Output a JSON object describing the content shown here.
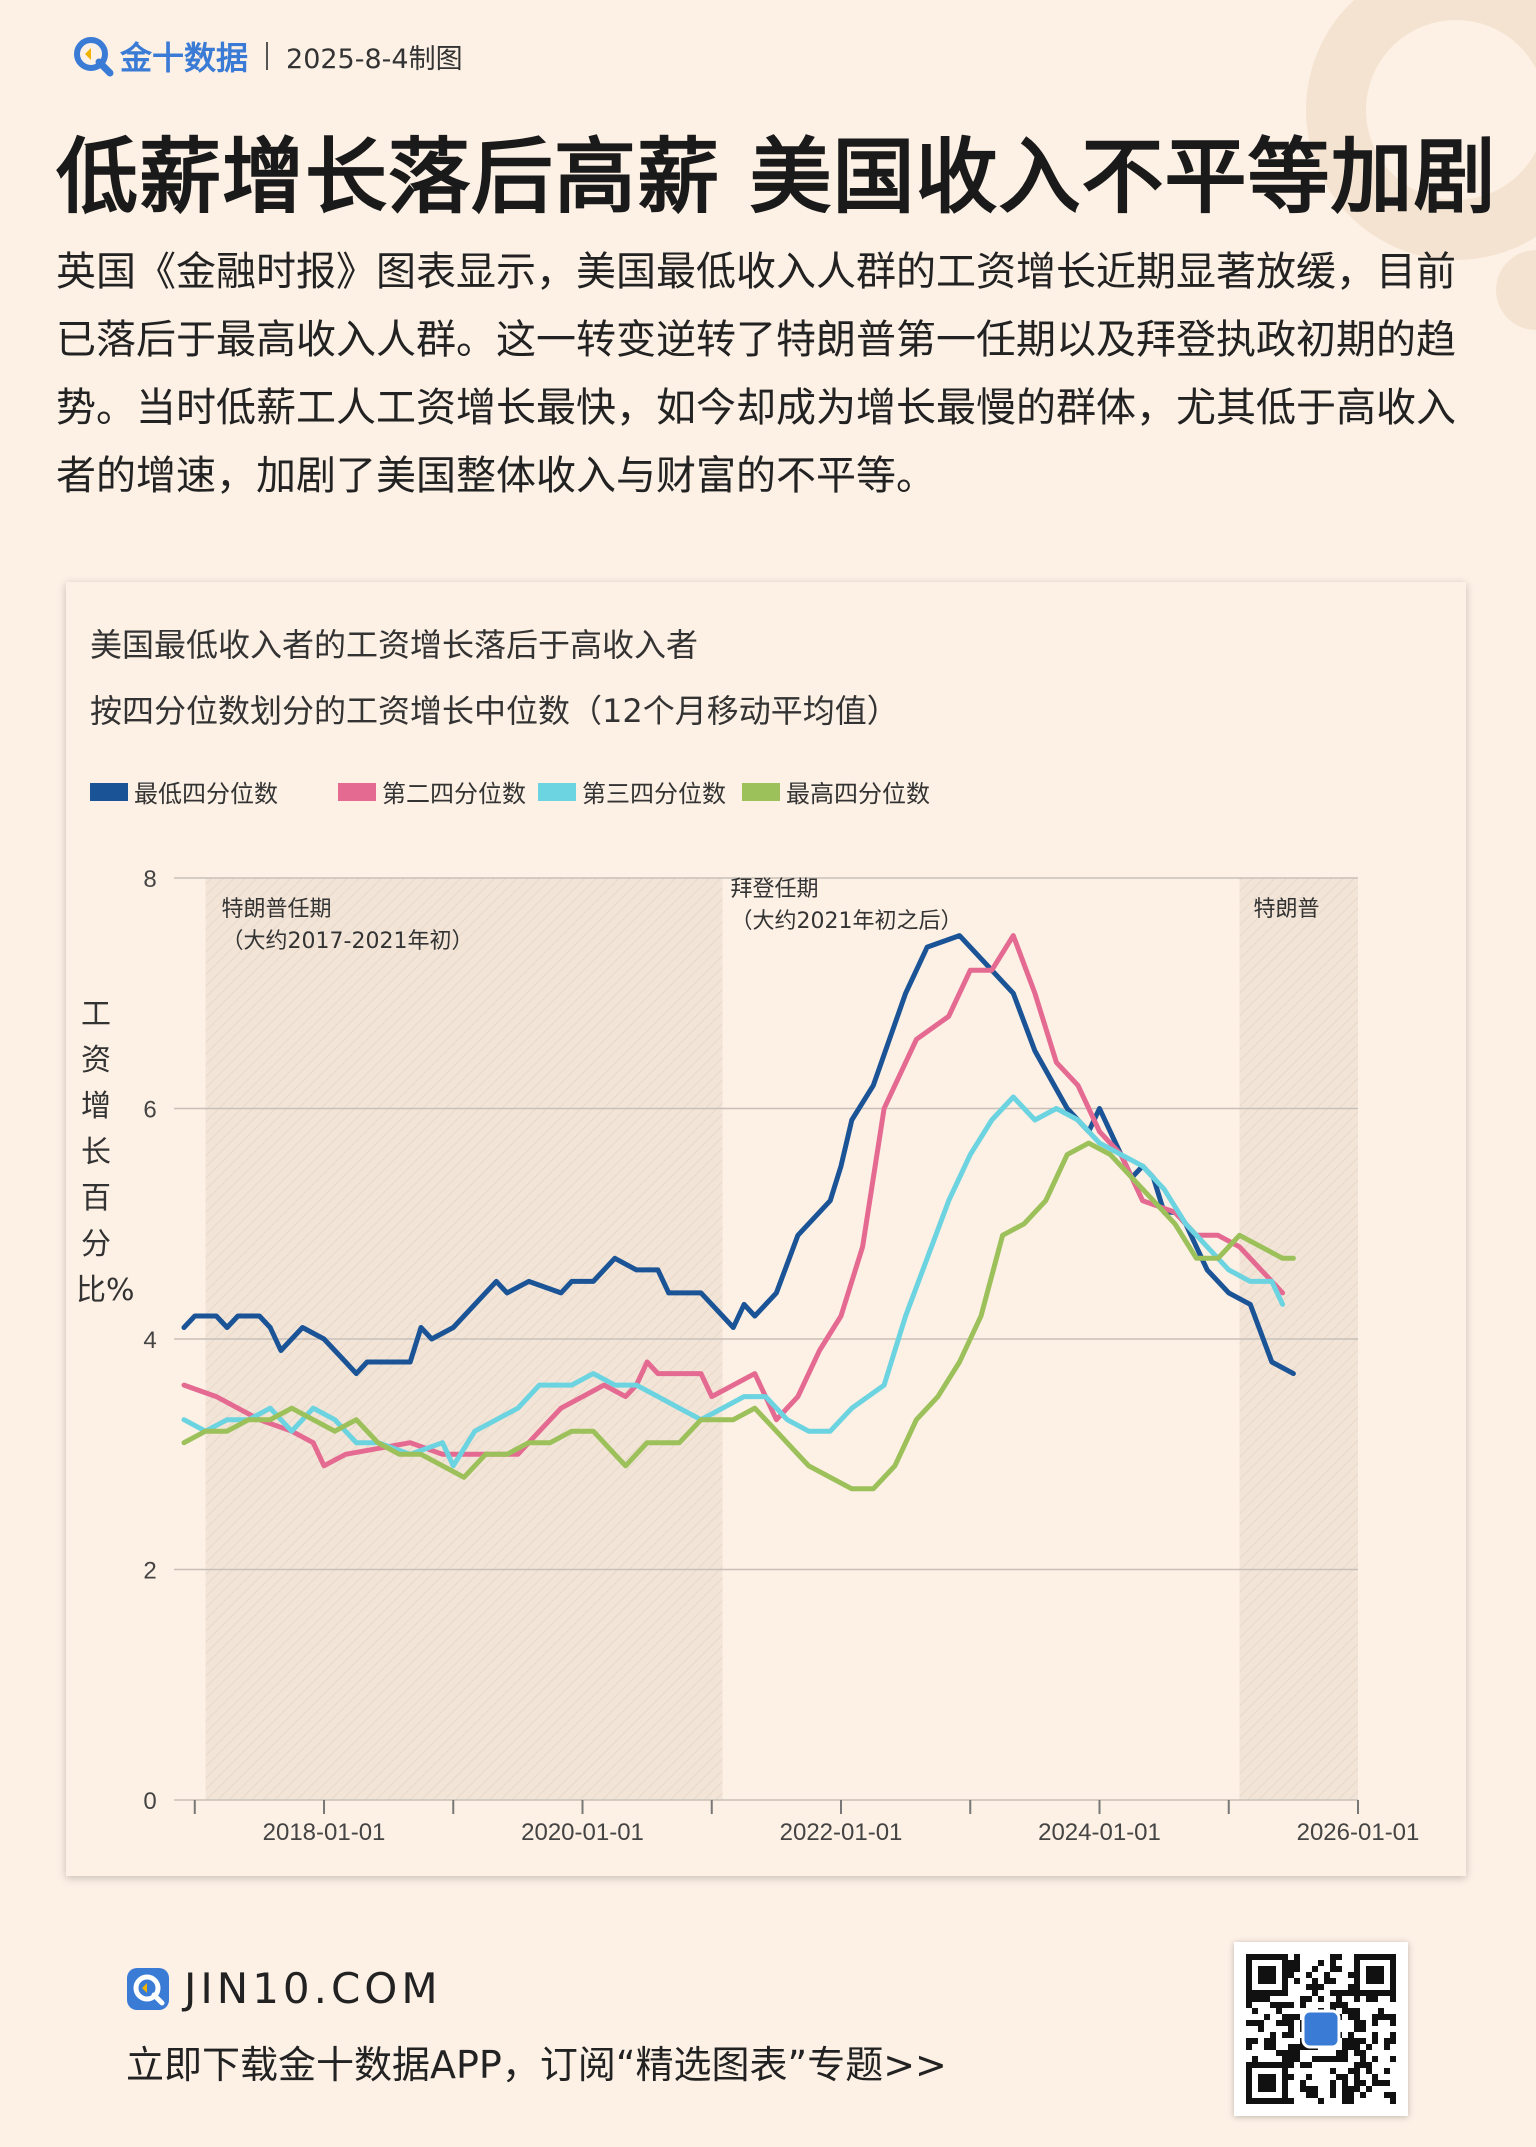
{
  "header": {
    "brand": "金十数据",
    "date": "2025-8-4制图"
  },
  "title": "低薪增长落后高薪 美国收入不平等加剧",
  "intro": "英国《金融时报》图表显示，美国最低收入人群的工资增长近期显著放缓，目前已落后于最高收入人群。这一转变逆转了特朗普第一任期以及拜登执政初期的趋势。当时低薪工人工资增长最快，如今却成为增长最慢的群体，尤其低于高收入者的增速，加剧了美国整体收入与财富的不平等。",
  "footer": {
    "site": "JIN10.COM",
    "cta": "立即下载金十数据APP，订阅“精选图表”专题>>"
  },
  "colors": {
    "accent": "#3a7bd5",
    "background": "#fdf1e6"
  },
  "chart_data": {
    "type": "line",
    "title": "美国最低收入者的工资增长落后于高收入者",
    "subtitle": "按四分位数划分的工资增长中位数（12个月移动平均值）",
    "ylabel": "工资增长百分比%",
    "xlabel": "",
    "ylim": [
      0,
      8
    ],
    "yticks": [
      "0",
      "2",
      "4",
      "6",
      "8"
    ],
    "xticks": [
      "2018-01-01",
      "2020-01-01",
      "2022-01-01",
      "2024-01-01",
      "2026-01-01"
    ],
    "grid": true,
    "legend_position": "top-left",
    "periods": [
      {
        "label": "特朗普任期",
        "sublabel": "（大约2017-2021年初）",
        "start": "2017-02",
        "end": "2021-02"
      },
      {
        "label": "拜登任期",
        "sublabel": "（大约2021年初之后）",
        "start": "2021-02",
        "end": "2025-02"
      },
      {
        "label": "特朗普",
        "sublabel": "",
        "start": "2025-02",
        "end": "2026-01"
      }
    ],
    "series": [
      {
        "name": "最低四分位数",
        "color": "#1b5496",
        "points": [
          [
            "2016-12",
            4.1
          ],
          [
            "2017-01",
            4.2
          ],
          [
            "2017-03",
            4.2
          ],
          [
            "2017-04",
            4.1
          ],
          [
            "2017-05",
            4.2
          ],
          [
            "2017-07",
            4.2
          ],
          [
            "2017-08",
            4.1
          ],
          [
            "2017-09",
            3.9
          ],
          [
            "2017-11",
            4.1
          ],
          [
            "2018-01",
            4.0
          ],
          [
            "2018-03",
            3.8
          ],
          [
            "2018-04",
            3.7
          ],
          [
            "2018-05",
            3.8
          ],
          [
            "2018-09",
            3.8
          ],
          [
            "2018-10",
            4.1
          ],
          [
            "2018-11",
            4.0
          ],
          [
            "2019-01",
            4.1
          ],
          [
            "2019-03",
            4.3
          ],
          [
            "2019-05",
            4.5
          ],
          [
            "2019-06",
            4.4
          ],
          [
            "2019-08",
            4.5
          ],
          [
            "2019-11",
            4.4
          ],
          [
            "2019-12",
            4.5
          ],
          [
            "2020-02",
            4.5
          ],
          [
            "2020-04",
            4.7
          ],
          [
            "2020-06",
            4.6
          ],
          [
            "2020-08",
            4.6
          ],
          [
            "2020-09",
            4.4
          ],
          [
            "2020-12",
            4.4
          ],
          [
            "2021-01",
            4.3
          ],
          [
            "2021-03",
            4.1
          ],
          [
            "2021-04",
            4.3
          ],
          [
            "2021-05",
            4.2
          ],
          [
            "2021-07",
            4.4
          ],
          [
            "2021-09",
            4.9
          ],
          [
            "2021-12",
            5.2
          ],
          [
            "2022-01",
            5.5
          ],
          [
            "2022-02",
            5.9
          ],
          [
            "2022-04",
            6.2
          ],
          [
            "2022-07",
            7.0
          ],
          [
            "2022-09",
            7.4
          ],
          [
            "2022-12",
            7.5
          ],
          [
            "2023-03",
            7.2
          ],
          [
            "2023-05",
            7.0
          ],
          [
            "2023-07",
            6.5
          ],
          [
            "2023-10",
            6.0
          ],
          [
            "2023-12",
            5.8
          ],
          [
            "2024-01",
            6.0
          ],
          [
            "2024-03",
            5.6
          ],
          [
            "2024-04",
            5.4
          ],
          [
            "2024-05",
            5.5
          ],
          [
            "2024-06",
            5.4
          ],
          [
            "2024-07",
            5.1
          ],
          [
            "2024-08",
            5.1
          ],
          [
            "2024-09",
            5.0
          ],
          [
            "2024-11",
            4.6
          ],
          [
            "2025-01",
            4.4
          ],
          [
            "2025-03",
            4.3
          ],
          [
            "2025-05",
            3.8
          ],
          [
            "2025-07",
            3.7
          ]
        ]
      },
      {
        "name": "第二四分位数",
        "color": "#e56a92",
        "points": [
          [
            "2016-12",
            3.6
          ],
          [
            "2017-03",
            3.5
          ],
          [
            "2017-05",
            3.4
          ],
          [
            "2017-07",
            3.3
          ],
          [
            "2017-10",
            3.2
          ],
          [
            "2017-12",
            3.1
          ],
          [
            "2018-01",
            2.9
          ],
          [
            "2018-03",
            3.0
          ],
          [
            "2018-09",
            3.1
          ],
          [
            "2018-12",
            3.0
          ],
          [
            "2019-04",
            3.0
          ],
          [
            "2019-07",
            3.0
          ],
          [
            "2019-09",
            3.2
          ],
          [
            "2019-11",
            3.4
          ],
          [
            "2020-03",
            3.6
          ],
          [
            "2020-05",
            3.5
          ],
          [
            "2020-06",
            3.6
          ],
          [
            "2020-07",
            3.8
          ],
          [
            "2020-08",
            3.7
          ],
          [
            "2020-12",
            3.7
          ],
          [
            "2021-01",
            3.5
          ],
          [
            "2021-03",
            3.6
          ],
          [
            "2021-05",
            3.7
          ],
          [
            "2021-07",
            3.3
          ],
          [
            "2021-09",
            3.5
          ],
          [
            "2021-11",
            3.9
          ],
          [
            "2022-01",
            4.2
          ],
          [
            "2022-03",
            4.8
          ],
          [
            "2022-05",
            6.0
          ],
          [
            "2022-08",
            6.6
          ],
          [
            "2022-11",
            6.8
          ],
          [
            "2023-01",
            7.2
          ],
          [
            "2023-03",
            7.2
          ],
          [
            "2023-05",
            7.5
          ],
          [
            "2023-07",
            7.0
          ],
          [
            "2023-09",
            6.4
          ],
          [
            "2023-11",
            6.2
          ],
          [
            "2024-01",
            5.8
          ],
          [
            "2024-03",
            5.6
          ],
          [
            "2024-05",
            5.2
          ],
          [
            "2024-08",
            5.1
          ],
          [
            "2024-10",
            4.9
          ],
          [
            "2024-12",
            4.9
          ],
          [
            "2025-02",
            4.8
          ],
          [
            "2025-04",
            4.6
          ],
          [
            "2025-06",
            4.4
          ]
        ]
      },
      {
        "name": "第三四分位数",
        "color": "#6cd3e0",
        "points": [
          [
            "2016-12",
            3.3
          ],
          [
            "2017-02",
            3.2
          ],
          [
            "2017-04",
            3.3
          ],
          [
            "2017-06",
            3.3
          ],
          [
            "2017-08",
            3.4
          ],
          [
            "2017-10",
            3.2
          ],
          [
            "2017-12",
            3.4
          ],
          [
            "2018-02",
            3.3
          ],
          [
            "2018-04",
            3.1
          ],
          [
            "2018-06",
            3.1
          ],
          [
            "2018-09",
            3.0
          ],
          [
            "2018-12",
            3.1
          ],
          [
            "2019-01",
            2.9
          ],
          [
            "2019-03",
            3.2
          ],
          [
            "2019-05",
            3.3
          ],
          [
            "2019-07",
            3.4
          ],
          [
            "2019-09",
            3.6
          ],
          [
            "2019-12",
            3.6
          ],
          [
            "2020-02",
            3.7
          ],
          [
            "2020-04",
            3.6
          ],
          [
            "2020-06",
            3.6
          ],
          [
            "2020-08",
            3.5
          ],
          [
            "2020-10",
            3.4
          ],
          [
            "2020-12",
            3.3
          ],
          [
            "2021-02",
            3.4
          ],
          [
            "2021-04",
            3.5
          ],
          [
            "2021-06",
            3.5
          ],
          [
            "2021-08",
            3.3
          ],
          [
            "2021-10",
            3.2
          ],
          [
            "2021-12",
            3.2
          ],
          [
            "2022-02",
            3.4
          ],
          [
            "2022-05",
            3.6
          ],
          [
            "2022-07",
            4.2
          ],
          [
            "2022-09",
            4.7
          ],
          [
            "2022-11",
            5.2
          ],
          [
            "2023-01",
            5.6
          ],
          [
            "2023-03",
            5.9
          ],
          [
            "2023-05",
            6.1
          ],
          [
            "2023-07",
            5.9
          ],
          [
            "2023-09",
            6.0
          ],
          [
            "2023-11",
            5.9
          ],
          [
            "2024-01",
            5.7
          ],
          [
            "2024-03",
            5.6
          ],
          [
            "2024-05",
            5.5
          ],
          [
            "2024-07",
            5.3
          ],
          [
            "2024-09",
            5.0
          ],
          [
            "2024-11",
            4.8
          ],
          [
            "2025-01",
            4.6
          ],
          [
            "2025-03",
            4.5
          ],
          [
            "2025-05",
            4.5
          ],
          [
            "2025-06",
            4.3
          ]
        ]
      },
      {
        "name": "最高四分位数",
        "color": "#9cc05a",
        "points": [
          [
            "2016-12",
            3.1
          ],
          [
            "2017-02",
            3.2
          ],
          [
            "2017-04",
            3.2
          ],
          [
            "2017-06",
            3.3
          ],
          [
            "2017-08",
            3.3
          ],
          [
            "2017-10",
            3.4
          ],
          [
            "2017-12",
            3.3
          ],
          [
            "2018-02",
            3.2
          ],
          [
            "2018-04",
            3.3
          ],
          [
            "2018-06",
            3.1
          ],
          [
            "2018-08",
            3.0
          ],
          [
            "2018-10",
            3.0
          ],
          [
            "2018-12",
            2.9
          ],
          [
            "2019-02",
            2.8
          ],
          [
            "2019-04",
            3.0
          ],
          [
            "2019-06",
            3.0
          ],
          [
            "2019-08",
            3.1
          ],
          [
            "2019-10",
            3.1
          ],
          [
            "2019-12",
            3.2
          ],
          [
            "2020-02",
            3.2
          ],
          [
            "2020-04",
            3.0
          ],
          [
            "2020-05",
            2.9
          ],
          [
            "2020-07",
            3.1
          ],
          [
            "2020-10",
            3.1
          ],
          [
            "2020-12",
            3.3
          ],
          [
            "2021-03",
            3.3
          ],
          [
            "2021-05",
            3.4
          ],
          [
            "2021-07",
            3.2
          ],
          [
            "2021-09",
            3.0
          ],
          [
            "2021-10",
            2.9
          ],
          [
            "2021-12",
            2.8
          ],
          [
            "2022-02",
            2.7
          ],
          [
            "2022-04",
            2.7
          ],
          [
            "2022-06",
            2.9
          ],
          [
            "2022-08",
            3.3
          ],
          [
            "2022-10",
            3.5
          ],
          [
            "2022-12",
            3.8
          ],
          [
            "2023-02",
            4.2
          ],
          [
            "2023-04",
            4.9
          ],
          [
            "2023-06",
            5.0
          ],
          [
            "2023-08",
            5.2
          ],
          [
            "2023-10",
            5.6
          ],
          [
            "2023-12",
            5.7
          ],
          [
            "2024-02",
            5.6
          ],
          [
            "2024-04",
            5.4
          ],
          [
            "2024-06",
            5.2
          ],
          [
            "2024-08",
            5.0
          ],
          [
            "2024-10",
            4.7
          ],
          [
            "2024-12",
            4.7
          ],
          [
            "2025-02",
            4.9
          ],
          [
            "2025-04",
            4.8
          ],
          [
            "2025-06",
            4.7
          ],
          [
            "2025-07",
            4.7
          ]
        ]
      }
    ]
  }
}
